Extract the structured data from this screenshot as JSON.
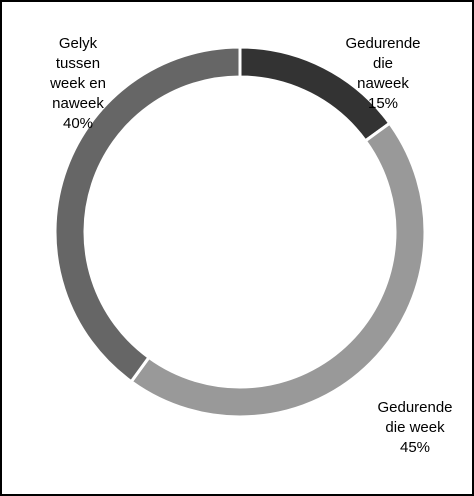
{
  "chart_data": {
    "type": "donut",
    "categories": [
      "Gedurende die naweek",
      "Gedurende die week",
      "Gelyk tussen week en naweek"
    ],
    "values": [
      15,
      45,
      40
    ],
    "value_labels": [
      "15%",
      "45%",
      "40%"
    ],
    "colors": [
      "#333333",
      "#999999",
      "#666666"
    ]
  }
}
